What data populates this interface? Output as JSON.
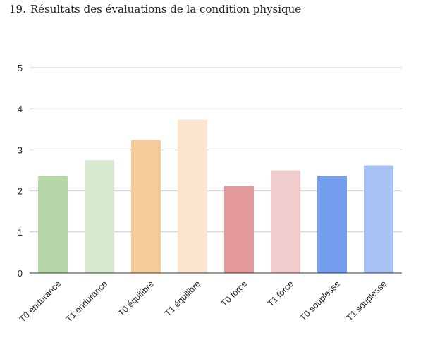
{
  "question": {
    "number": "19.",
    "text": "Résultats des évaluations de la condition physique"
  },
  "chart_data": {
    "type": "bar",
    "title": "",
    "xlabel": "",
    "ylabel": "",
    "ylim": [
      0,
      5
    ],
    "yticks": [
      "0",
      "1",
      "2",
      "3",
      "4",
      "5"
    ],
    "grid": true,
    "legend": "none",
    "categories": [
      "T0 endurance",
      "T1 endurance",
      "T0 équilibre",
      "T1 équilibre",
      "T0 force",
      "T1 force",
      "T0 souplesse",
      "T1 souplesse"
    ],
    "values": [
      2.37,
      2.75,
      3.24,
      3.74,
      2.13,
      2.5,
      2.37,
      2.62
    ],
    "colors": [
      "#b6d7a8",
      "#d9ead3",
      "#f6cb9a",
      "#fce5cd",
      "#e39999",
      "#f0cccc",
      "#739ded",
      "#a8c2f5"
    ]
  }
}
